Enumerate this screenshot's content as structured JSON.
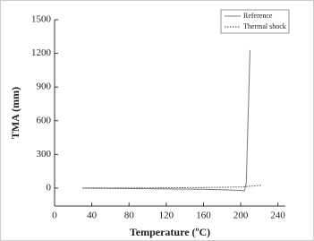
{
  "chart_data": {
    "type": "line",
    "x_label": "Temperature (ºC)",
    "y_label": "TMA (mm)",
    "xlim": [
      0,
      248
    ],
    "xticks": [
      0,
      40,
      80,
      120,
      160,
      200,
      240
    ],
    "ylim": [
      -160,
      1500
    ],
    "yticks": [
      0,
      300,
      600,
      900,
      1200,
      1500
    ],
    "legend": "upper right",
    "series": [
      {
        "name": "Reference",
        "color": "#777777",
        "style": "solid",
        "x": [
          30,
          100,
          160,
          200,
          204,
          206,
          210
        ],
        "values": [
          0,
          -5,
          -10,
          -20,
          -25,
          50,
          1230
        ]
      },
      {
        "name": "Thermal shock",
        "color": "#444444",
        "style": "dotted",
        "x": [
          30,
          100,
          160,
          200,
          222
        ],
        "values": [
          0,
          2,
          5,
          10,
          25
        ]
      }
    ]
  }
}
